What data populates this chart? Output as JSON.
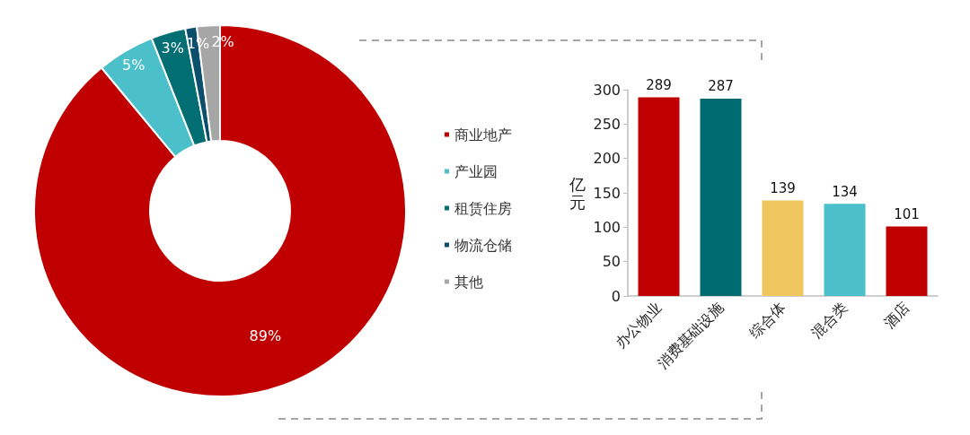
{
  "chart_data": [
    {
      "type": "donut",
      "categories": [
        "商业地产",
        "产业园",
        "租赁住房",
        "物流仓储",
        "其他"
      ],
      "values": [
        89,
        5,
        3,
        1,
        2
      ],
      "colors": [
        "#c00000",
        "#4bbfca",
        "#006e73",
        "#0b4f6c",
        "#a6a6a6"
      ],
      "value_labels": [
        "89%",
        "5%",
        "3%",
        "1%",
        "2%"
      ],
      "legend": "right"
    },
    {
      "type": "bar",
      "categories": [
        "办公物业",
        "消费基础设施",
        "综合体",
        "混合类",
        "酒店"
      ],
      "values": [
        289,
        287,
        139,
        134,
        101
      ],
      "colors": [
        "#c00000",
        "#006b70",
        "#efc75e",
        "#4bbfca",
        "#c00000"
      ],
      "ylabel": "亿元",
      "ylim": [
        0,
        300
      ],
      "yticks": [
        0,
        50,
        100,
        150,
        200,
        250,
        300
      ],
      "data_labels": true
    }
  ]
}
